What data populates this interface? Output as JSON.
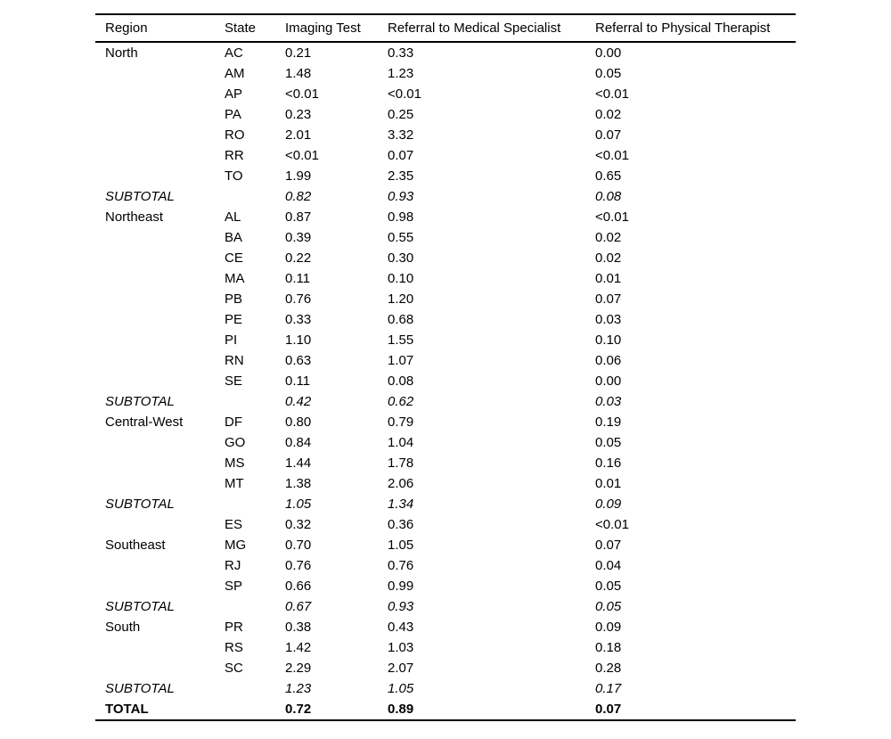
{
  "table": {
    "columns": [
      "Region",
      "State",
      "Imaging Test",
      "Referral to Medical Specialist",
      "Referral to Physical Therapist"
    ],
    "rows": [
      {
        "region": "North",
        "state": "AC",
        "imaging": "0.21",
        "medical": "0.33",
        "physical": "0.00",
        "type": "data"
      },
      {
        "region": "",
        "state": "AM",
        "imaging": "1.48",
        "medical": "1.23",
        "physical": "0.05",
        "type": "data"
      },
      {
        "region": "",
        "state": "AP",
        "imaging": "<0.01",
        "medical": "<0.01",
        "physical": "<0.01",
        "type": "data"
      },
      {
        "region": "",
        "state": "PA",
        "imaging": "0.23",
        "medical": "0.25",
        "physical": "0.02",
        "type": "data"
      },
      {
        "region": "",
        "state": "RO",
        "imaging": "2.01",
        "medical": "3.32",
        "physical": "0.07",
        "type": "data"
      },
      {
        "region": "",
        "state": "RR",
        "imaging": "<0.01",
        "medical": "0.07",
        "physical": "<0.01",
        "type": "data"
      },
      {
        "region": "",
        "state": "TO",
        "imaging": "1.99",
        "medical": "2.35",
        "physical": "0.65",
        "type": "data"
      },
      {
        "region": "SUBTOTAL",
        "state": "",
        "imaging": "0.82",
        "medical": "0.93",
        "physical": "0.08",
        "type": "subtotal"
      },
      {
        "region": "Northeast",
        "state": "AL",
        "imaging": "0.87",
        "medical": "0.98",
        "physical": "<0.01",
        "type": "data"
      },
      {
        "region": "",
        "state": "BA",
        "imaging": "0.39",
        "medical": "0.55",
        "physical": "0.02",
        "type": "data"
      },
      {
        "region": "",
        "state": "CE",
        "imaging": "0.22",
        "medical": "0.30",
        "physical": "0.02",
        "type": "data"
      },
      {
        "region": "",
        "state": "MA",
        "imaging": "0.11",
        "medical": "0.10",
        "physical": "0.01",
        "type": "data"
      },
      {
        "region": "",
        "state": "PB",
        "imaging": "0.76",
        "medical": "1.20",
        "physical": "0.07",
        "type": "data"
      },
      {
        "region": "",
        "state": "PE",
        "imaging": "0.33",
        "medical": "0.68",
        "physical": "0.03",
        "type": "data"
      },
      {
        "region": "",
        "state": "PI",
        "imaging": "1.10",
        "medical": "1.55",
        "physical": "0.10",
        "type": "data"
      },
      {
        "region": "",
        "state": "RN",
        "imaging": "0.63",
        "medical": "1.07",
        "physical": "0.06",
        "type": "data"
      },
      {
        "region": "",
        "state": "SE",
        "imaging": "0.11",
        "medical": "0.08",
        "physical": "0.00",
        "type": "data"
      },
      {
        "region": "SUBTOTAL",
        "state": "",
        "imaging": "0.42",
        "medical": "0.62",
        "physical": "0.03",
        "type": "subtotal"
      },
      {
        "region": "Central-West",
        "state": "DF",
        "imaging": "0.80",
        "medical": "0.79",
        "physical": "0.19",
        "type": "data"
      },
      {
        "region": "",
        "state": "GO",
        "imaging": "0.84",
        "medical": "1.04",
        "physical": "0.05",
        "type": "data"
      },
      {
        "region": "",
        "state": "MS",
        "imaging": "1.44",
        "medical": "1.78",
        "physical": "0.16",
        "type": "data"
      },
      {
        "region": "",
        "state": "MT",
        "imaging": "1.38",
        "medical": "2.06",
        "physical": "0.01",
        "type": "data"
      },
      {
        "region": "SUBTOTAL",
        "state": "",
        "imaging": "1.05",
        "medical": "1.34",
        "physical": "0.09",
        "type": "subtotal"
      },
      {
        "region": "",
        "state": "ES",
        "imaging": "0.32",
        "medical": "0.36",
        "physical": "<0.01",
        "type": "data"
      },
      {
        "region": "Southeast",
        "state": "MG",
        "imaging": "0.70",
        "medical": "1.05",
        "physical": "0.07",
        "type": "data"
      },
      {
        "region": "",
        "state": "RJ",
        "imaging": "0.76",
        "medical": "0.76",
        "physical": "0.04",
        "type": "data"
      },
      {
        "region": "",
        "state": "SP",
        "imaging": "0.66",
        "medical": "0.99",
        "physical": "0.05",
        "type": "data"
      },
      {
        "region": "SUBTOTAL",
        "state": "",
        "imaging": "0.67",
        "medical": "0.93",
        "physical": "0.05",
        "type": "subtotal"
      },
      {
        "region": "South",
        "state": "PR",
        "imaging": "0.38",
        "medical": "0.43",
        "physical": "0.09",
        "type": "data"
      },
      {
        "region": "",
        "state": "RS",
        "imaging": "1.42",
        "medical": "1.03",
        "physical": "0.18",
        "type": "data"
      },
      {
        "region": "",
        "state": "SC",
        "imaging": "2.29",
        "medical": "2.07",
        "physical": "0.28",
        "type": "data"
      },
      {
        "region": "SUBTOTAL",
        "state": "",
        "imaging": "1.23",
        "medical": "1.05",
        "physical": "0.17",
        "type": "subtotal"
      },
      {
        "region": "TOTAL",
        "state": "",
        "imaging": "0.72",
        "medical": "0.89",
        "physical": "0.07",
        "type": "total"
      }
    ]
  }
}
